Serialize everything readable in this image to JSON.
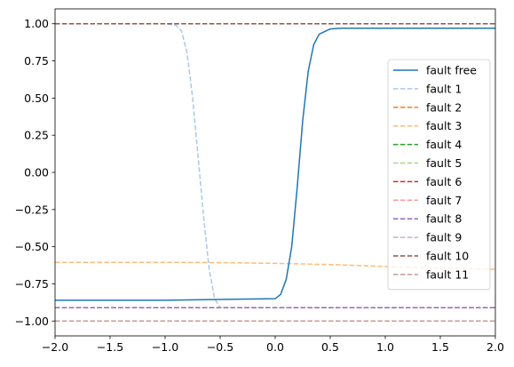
{
  "chart_data": {
    "type": "line",
    "xlim": [
      -2.0,
      2.0
    ],
    "ylim": [
      -1.1,
      1.1
    ],
    "x_ticks": [
      "-2.0",
      "-1.5",
      "-1.0",
      "-0.5",
      "0.0",
      "0.5",
      "1.0",
      "1.5",
      "2.0"
    ],
    "y_ticks": [
      "1.00",
      "0.75",
      "0.50",
      "0.25",
      "0.00",
      "-0.25",
      "-0.50",
      "-0.75",
      "-1.00"
    ],
    "grid": false,
    "legend_position": "center-right",
    "series": [
      {
        "name": "fault free",
        "color": "#1f77b4",
        "style": "solid",
        "x": [
          -2.0,
          -1.0,
          0.0,
          0.05,
          0.1,
          0.15,
          0.2,
          0.25,
          0.3,
          0.35,
          0.4,
          0.5,
          0.6,
          1.0,
          2.0
        ],
        "y": [
          -0.86,
          -0.86,
          -0.85,
          -0.82,
          -0.72,
          -0.5,
          -0.1,
          0.35,
          0.68,
          0.86,
          0.93,
          0.965,
          0.97,
          0.97,
          0.97
        ]
      },
      {
        "name": "fault 1",
        "color": "#aec7e8",
        "style": "dashed",
        "x": [
          -2.0,
          -1.0,
          -0.9,
          -0.85,
          -0.8,
          -0.75,
          -0.7,
          -0.65,
          -0.6,
          -0.55,
          -0.5
        ],
        "y": [
          1.0,
          1.0,
          0.99,
          0.95,
          0.8,
          0.5,
          0.1,
          -0.3,
          -0.65,
          -0.85,
          -0.91
        ]
      },
      {
        "name": "fault 2",
        "color": "#ff7f0e",
        "style": "dashed",
        "x": [
          -2.0,
          2.0
        ],
        "y": [
          -0.91,
          -0.91
        ]
      },
      {
        "name": "fault 3",
        "color": "#ffbb78",
        "style": "dashed",
        "x": [
          -2.0,
          -1.0,
          -0.5,
          0.0,
          0.5,
          1.0,
          1.5,
          2.0
        ],
        "y": [
          -0.605,
          -0.605,
          -0.607,
          -0.612,
          -0.62,
          -0.633,
          -0.645,
          -0.652
        ]
      },
      {
        "name": "fault 4",
        "color": "#2ca02c",
        "style": "dashed",
        "x": [
          -2.0,
          2.0
        ],
        "y": [
          -0.91,
          -0.91
        ]
      },
      {
        "name": "fault 5",
        "color": "#98df8a",
        "style": "dashed",
        "x": [
          -2.0,
          2.0
        ],
        "y": [
          -0.91,
          -0.91
        ]
      },
      {
        "name": "fault 6",
        "color": "#d62728",
        "style": "dashed",
        "x": [
          -2.0,
          2.0
        ],
        "y": [
          -0.91,
          -0.91
        ]
      },
      {
        "name": "fault 7",
        "color": "#ff9896",
        "style": "dashed",
        "x": [
          -2.0,
          2.0
        ],
        "y": [
          -0.91,
          -0.91
        ]
      },
      {
        "name": "fault 8",
        "color": "#9467bd",
        "style": "dashed",
        "x": [
          -2.0,
          2.0
        ],
        "y": [
          -0.91,
          -0.91
        ]
      },
      {
        "name": "fault 9",
        "color": "#c5b0d5",
        "style": "dashed",
        "x": [
          -2.0,
          2.0
        ],
        "y": [
          1.0,
          1.0
        ]
      },
      {
        "name": "fault 10",
        "color": "#8c564b",
        "style": "dashed",
        "x": [
          -2.0,
          2.0
        ],
        "y": [
          1.0,
          1.0
        ]
      },
      {
        "name": "fault 11",
        "color": "#c49c94",
        "style": "dashed",
        "x": [
          -2.0,
          2.0
        ],
        "y": [
          -1.0,
          -1.0
        ]
      }
    ]
  }
}
